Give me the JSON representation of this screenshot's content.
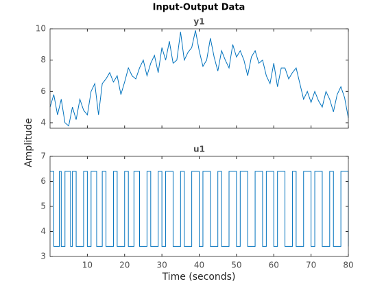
{
  "title": "Input-Output Data",
  "ylabel": "Amplitude",
  "xlabel": "Time (seconds)",
  "chart_data": [
    {
      "type": "line",
      "title": "y1",
      "color": "#0072bd",
      "xlim": [
        0,
        80
      ],
      "ylim": [
        3.65,
        10
      ],
      "xticks": [
        10,
        20,
        30,
        40,
        50,
        60,
        70,
        80
      ],
      "xtick_labels": false,
      "yticks": [
        4,
        6,
        8,
        10
      ],
      "x": [
        0,
        1,
        2,
        3,
        4,
        5,
        6,
        7,
        8,
        9,
        10,
        11,
        12,
        13,
        14,
        15,
        16,
        17,
        18,
        19,
        20,
        21,
        22,
        23,
        24,
        25,
        26,
        27,
        28,
        29,
        30,
        31,
        32,
        33,
        34,
        35,
        36,
        37,
        38,
        39,
        40,
        41,
        42,
        43,
        44,
        45,
        46,
        47,
        48,
        49,
        50,
        51,
        52,
        53,
        54,
        55,
        56,
        57,
        58,
        59,
        60,
        61,
        62,
        63,
        64,
        65,
        66,
        67,
        68,
        69,
        70,
        71,
        72,
        73,
        74,
        75,
        76,
        77,
        78,
        79,
        80
      ],
      "series": [
        {
          "name": "y1",
          "values": [
            5,
            5.8,
            4.5,
            5.5,
            4,
            3.8,
            5,
            4.2,
            5.5,
            4.8,
            4.5,
            6,
            6.5,
            4.5,
            6.5,
            6.8,
            7.2,
            6.6,
            7,
            5.8,
            6.6,
            7.5,
            7,
            6.8,
            7.5,
            8,
            7,
            7.8,
            8.3,
            7.2,
            8.8,
            8,
            9.2,
            7.8,
            8,
            9.8,
            8,
            8.5,
            8.8,
            9.9,
            8.6,
            7.6,
            8,
            9.4,
            8.2,
            7.3,
            8.6,
            8,
            7.5,
            9,
            8.2,
            8.6,
            8,
            7,
            8.2,
            8.6,
            7.8,
            8,
            7,
            6.5,
            7.8,
            6.3,
            7.5,
            7.5,
            6.8,
            7.2,
            7.5,
            6.5,
            5.5,
            6,
            5.3,
            6,
            5.4,
            5,
            6,
            5.5,
            4.7,
            5.8,
            6.3,
            5.6,
            4.3
          ]
        }
      ]
    },
    {
      "type": "line",
      "step": true,
      "title": "u1",
      "color": "#0072bd",
      "xlim": [
        0,
        80
      ],
      "ylim": [
        3,
        7
      ],
      "xticks": [
        10,
        20,
        30,
        40,
        50,
        60,
        70,
        80
      ],
      "xtick_labels": true,
      "yticks": [
        3,
        4,
        5,
        6,
        7
      ],
      "x": [
        0,
        1,
        2.5,
        3,
        4,
        5.5,
        6,
        7,
        9,
        10,
        11,
        12.5,
        14,
        15,
        17,
        18,
        20,
        21,
        22.5,
        24,
        26,
        27,
        29,
        30,
        31,
        33,
        35,
        36,
        38,
        40,
        41,
        43,
        45,
        46,
        48,
        50,
        51,
        53,
        55,
        57,
        58,
        60,
        61,
        63,
        65,
        66,
        68,
        70,
        71,
        73,
        75,
        76,
        78,
        80
      ],
      "series": [
        {
          "name": "u1",
          "values": [
            6.4,
            3.4,
            6.4,
            3.4,
            6.4,
            3.4,
            6.4,
            3.4,
            6.4,
            3.4,
            6.4,
            3.4,
            6.4,
            3.4,
            6.4,
            3.4,
            6.4,
            3.4,
            6.4,
            3.4,
            6.4,
            3.4,
            6.4,
            3.4,
            6.4,
            3.4,
            6.4,
            3.4,
            6.4,
            3.4,
            6.4,
            3.4,
            6.4,
            3.4,
            6.4,
            3.4,
            6.4,
            3.4,
            6.4,
            3.4,
            6.4,
            3.4,
            6.4,
            3.4,
            6.4,
            3.4,
            6.4,
            3.4,
            6.4,
            3.4,
            6.4,
            3.4,
            6.4,
            3.4
          ]
        }
      ]
    }
  ]
}
